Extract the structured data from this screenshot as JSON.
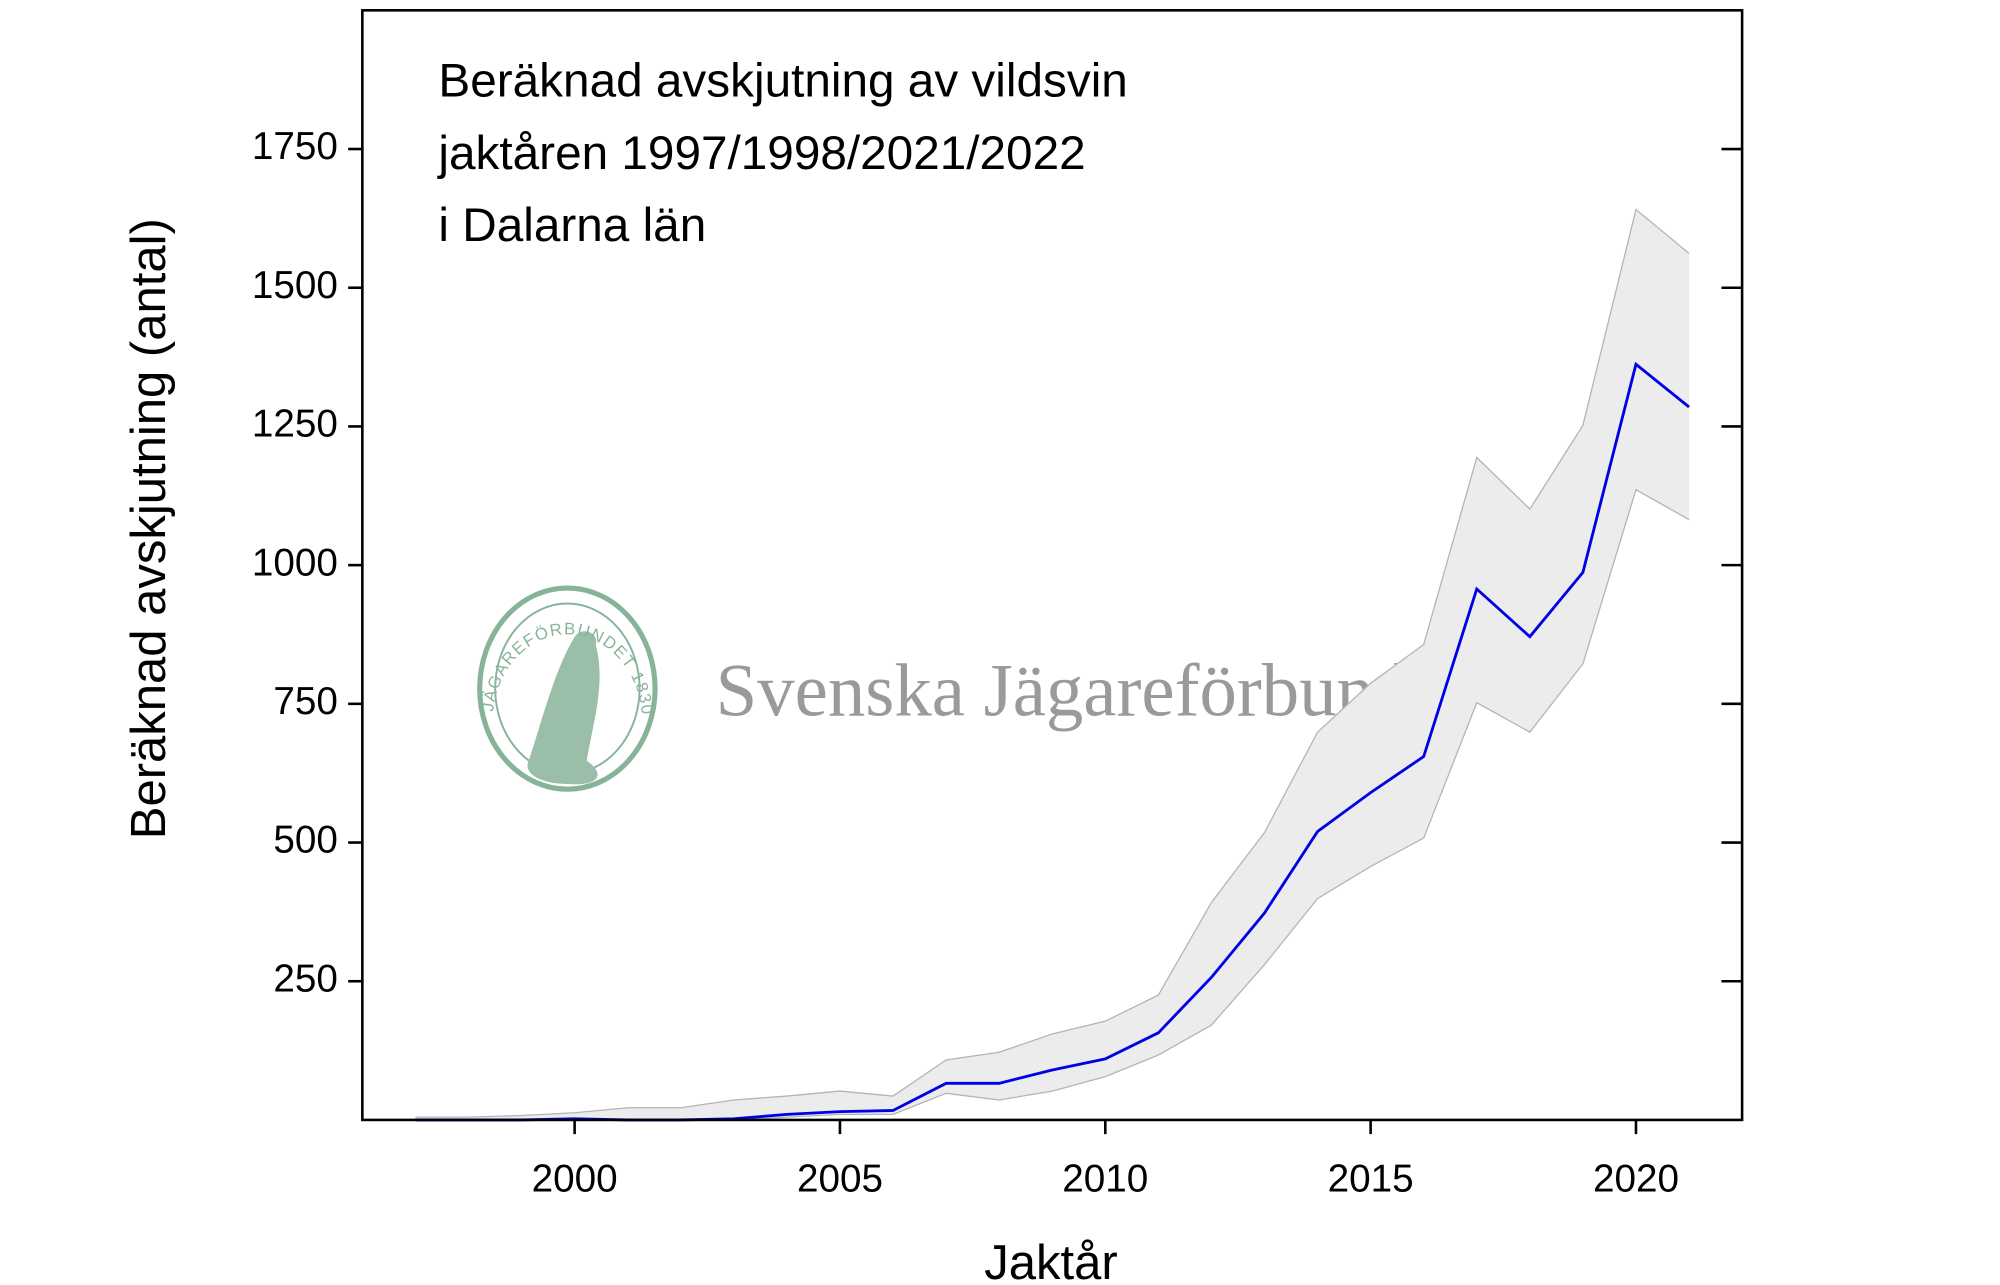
{
  "chart_data": {
    "type": "line",
    "title": [
      "Beräknad avskjutning av vildsvin",
      "jaktåren 1997/1998/2021/2022",
      "i Dalarna län"
    ],
    "x_label": "Jaktår",
    "y_label": "Beräknad avskjutning (antal)",
    "watermark": "Svenska Jägareförbundet",
    "logo_text": "JÄGAREFÖRBUNDET 1830",
    "x": [
      1997,
      1998,
      1999,
      2000,
      2001,
      2002,
      2003,
      2004,
      2005,
      2006,
      2007,
      2008,
      2009,
      2010,
      2011,
      2012,
      2013,
      2014,
      2015,
      2016,
      2017,
      2018,
      2019,
      2020,
      2021
    ],
    "values": [
      0,
      0,
      0,
      2,
      0,
      0,
      2,
      10,
      15,
      17,
      66,
      66,
      90,
      110,
      157,
      257,
      373,
      520,
      590,
      655,
      957,
      871,
      987,
      1362,
      1285
    ],
    "upper": [
      5,
      5,
      8,
      13,
      22,
      22,
      36,
      43,
      52,
      43,
      108,
      122,
      155,
      178,
      225,
      392,
      518,
      699,
      787,
      857,
      1194,
      1101,
      1252,
      1641,
      1562
    ],
    "lower": [
      0,
      0,
      0,
      0,
      0,
      0,
      0,
      5,
      10,
      10,
      48,
      36,
      52,
      78,
      117,
      171,
      280,
      399,
      457,
      508,
      752,
      699,
      822,
      1136,
      1082
    ],
    "color": "#0000e6",
    "band_color": "#ececec",
    "band_edge_color": "#b4b4b4",
    "xlim": [
      1996,
      2022
    ],
    "ylim": [
      0,
      2000
    ],
    "xticks": [
      2000,
      2005,
      2010,
      2015,
      2020
    ],
    "yticks": [
      250,
      500,
      750,
      1000,
      1250,
      1500,
      1750
    ],
    "grid": false
  }
}
